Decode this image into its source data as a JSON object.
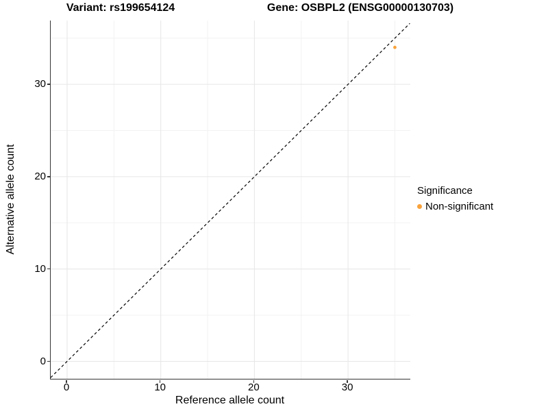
{
  "titles": {
    "left": "Variant: rs199654124",
    "right": "Gene: OSBPL2 (ENSG00000130703)"
  },
  "legend": {
    "title": "Significance",
    "position": "right",
    "items": [
      {
        "label": "Non-significant",
        "color": "#F9A23B"
      }
    ]
  },
  "colors": {
    "background": "#FFFFFF",
    "point": "#F9A23B",
    "axis_line": "#333333",
    "grid_major": "#E6E6E6",
    "grid_minor": "#F2F2F2",
    "reference_line": "#000000",
    "text": "#000000"
  },
  "chart_data": {
    "type": "scatter",
    "titles": [
      "Variant: rs199654124",
      "Gene: OSBPL2 (ENSG00000130703)"
    ],
    "xlabel": "Reference allele count",
    "ylabel": "Alternative allele count",
    "xlim": [
      -1.76,
      36.6
    ],
    "ylim": [
      -1.89,
      36.9
    ],
    "x_ticks_major": [
      0,
      10,
      20,
      30
    ],
    "x_ticks_minor": [
      5,
      15,
      25,
      35
    ],
    "y_ticks_major": [
      0,
      10,
      20,
      30
    ],
    "y_ticks_minor": [
      5,
      15,
      25,
      35
    ],
    "grid": true,
    "reference_line": {
      "type": "abline",
      "slope": 1,
      "intercept": 0,
      "style": "dashed",
      "color": "#000000"
    },
    "series": [
      {
        "name": "Non-significant",
        "color": "#F9A23B",
        "points": [
          [
            35,
            34
          ]
        ]
      }
    ],
    "legend_position": "right"
  }
}
